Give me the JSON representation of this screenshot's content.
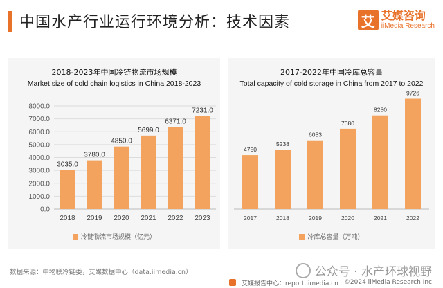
{
  "header": {
    "title": "中国水产行业运行环境分析：技术因素",
    "logo_mark": "艾",
    "logo_cn": "艾媒咨询",
    "logo_en": "iiMedia Research"
  },
  "colors": {
    "accent": "#e8722a",
    "bar": "#f3a35e",
    "panel_bg": "#f5f5f5"
  },
  "chart_data": [
    {
      "type": "bar",
      "title": "2018-2023年中国冷链物流市场规模",
      "subtitle": "Market size of cold chain logistics in China 2018-2023",
      "categories": [
        "2018",
        "2019",
        "2020",
        "2021",
        "2022",
        "2023"
      ],
      "values": [
        3035.0,
        3780.0,
        4850.0,
        5699.0,
        6371.0,
        7231.0
      ],
      "value_labels": [
        "3035.0",
        "3780.0",
        "4850.0",
        "5699.0",
        "6371.0",
        "7231.0"
      ],
      "yticks": [
        "0.0",
        "1000.0",
        "2000.0",
        "3000.0",
        "4000.0",
        "5000.0",
        "6000.0",
        "7000.0",
        "8000.0"
      ],
      "ylim": [
        0,
        8000
      ],
      "grid": true,
      "legend": "冷链物流市场规模（亿元）",
      "legend_position": "bottom"
    },
    {
      "type": "bar",
      "title": "2017-2022年中国冷库总容量",
      "subtitle": "Total capacity of cold storage in China from 2017 to 2022",
      "categories": [
        "2017",
        "2018",
        "2019",
        "2020",
        "2021",
        "2022"
      ],
      "values": [
        4750,
        5238,
        6053,
        7080,
        8250,
        9726
      ],
      "value_labels": [
        "4750",
        "5238",
        "6053",
        "7080",
        "8250",
        "9726"
      ],
      "ylim": [
        0,
        10000
      ],
      "grid": false,
      "legend": "冷库总容量（万吨）",
      "legend_position": "bottom"
    }
  ],
  "footer": {
    "source": "数据来源：中物联冷链委，艾媒数据中心（data.iimedia.cn）",
    "watermark": "公众号 · 水产环球视野",
    "report_site": "艾媒报告中心：report.iimedia.cn",
    "copyright": "©2024  iiMedia Research  Inc"
  }
}
